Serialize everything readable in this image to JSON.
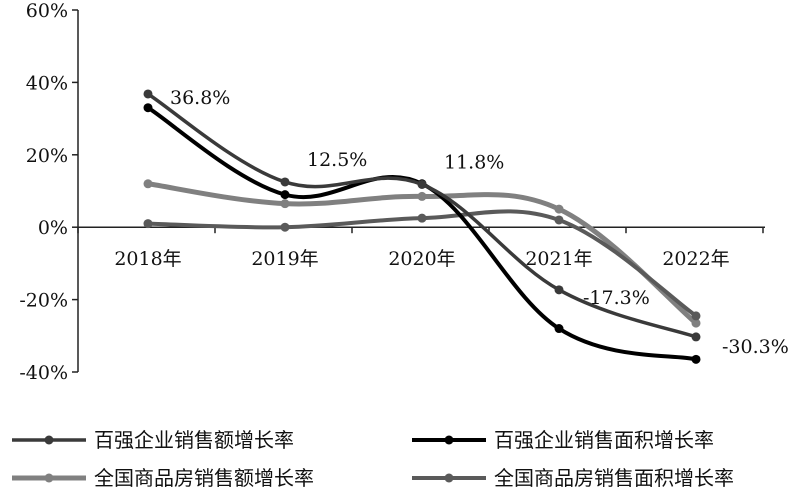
{
  "chart_data": {
    "type": "line",
    "categories": [
      "2018年",
      "2019年",
      "2020年",
      "2021年",
      "2022年"
    ],
    "ylim": [
      -40,
      60
    ],
    "yticks": [
      "60%",
      "40%",
      "20%",
      "0%",
      "-20%",
      "-40%"
    ],
    "ytick_values": [
      60,
      40,
      20,
      0,
      -20,
      -40
    ],
    "grid": false,
    "legend_position": "bottom",
    "series": [
      {
        "name": "百强企业销售额增长率",
        "values": [
          36.8,
          12.5,
          11.8,
          -17.3,
          -30.3
        ],
        "color": "#3a3a3a",
        "width": 3.5,
        "marker": true
      },
      {
        "name": "百强企业销售面积增长率",
        "values": [
          33.0,
          9.0,
          12.0,
          -28.0,
          -36.5
        ],
        "color": "#000000",
        "width": 4,
        "marker": true
      },
      {
        "name": "全国商品房销售额增长率",
        "values": [
          12.0,
          6.5,
          8.5,
          5.0,
          -26.5
        ],
        "color": "#808080",
        "width": 5,
        "marker": true
      },
      {
        "name": "全国商品房销售面积增长率",
        "values": [
          1.0,
          0.0,
          2.5,
          2.0,
          -24.5
        ],
        "color": "#5a5a5a",
        "width": 4,
        "marker": true
      }
    ],
    "annotations": [
      {
        "text": "36.8%",
        "series": 0,
        "index": 0
      },
      {
        "text": "12.5%",
        "series": 0,
        "index": 1
      },
      {
        "text": "11.8%",
        "series": 0,
        "index": 2
      },
      {
        "text": "-17.3%",
        "series": 0,
        "index": 3
      },
      {
        "text": "-30.3%",
        "series": 0,
        "index": 4
      }
    ]
  }
}
